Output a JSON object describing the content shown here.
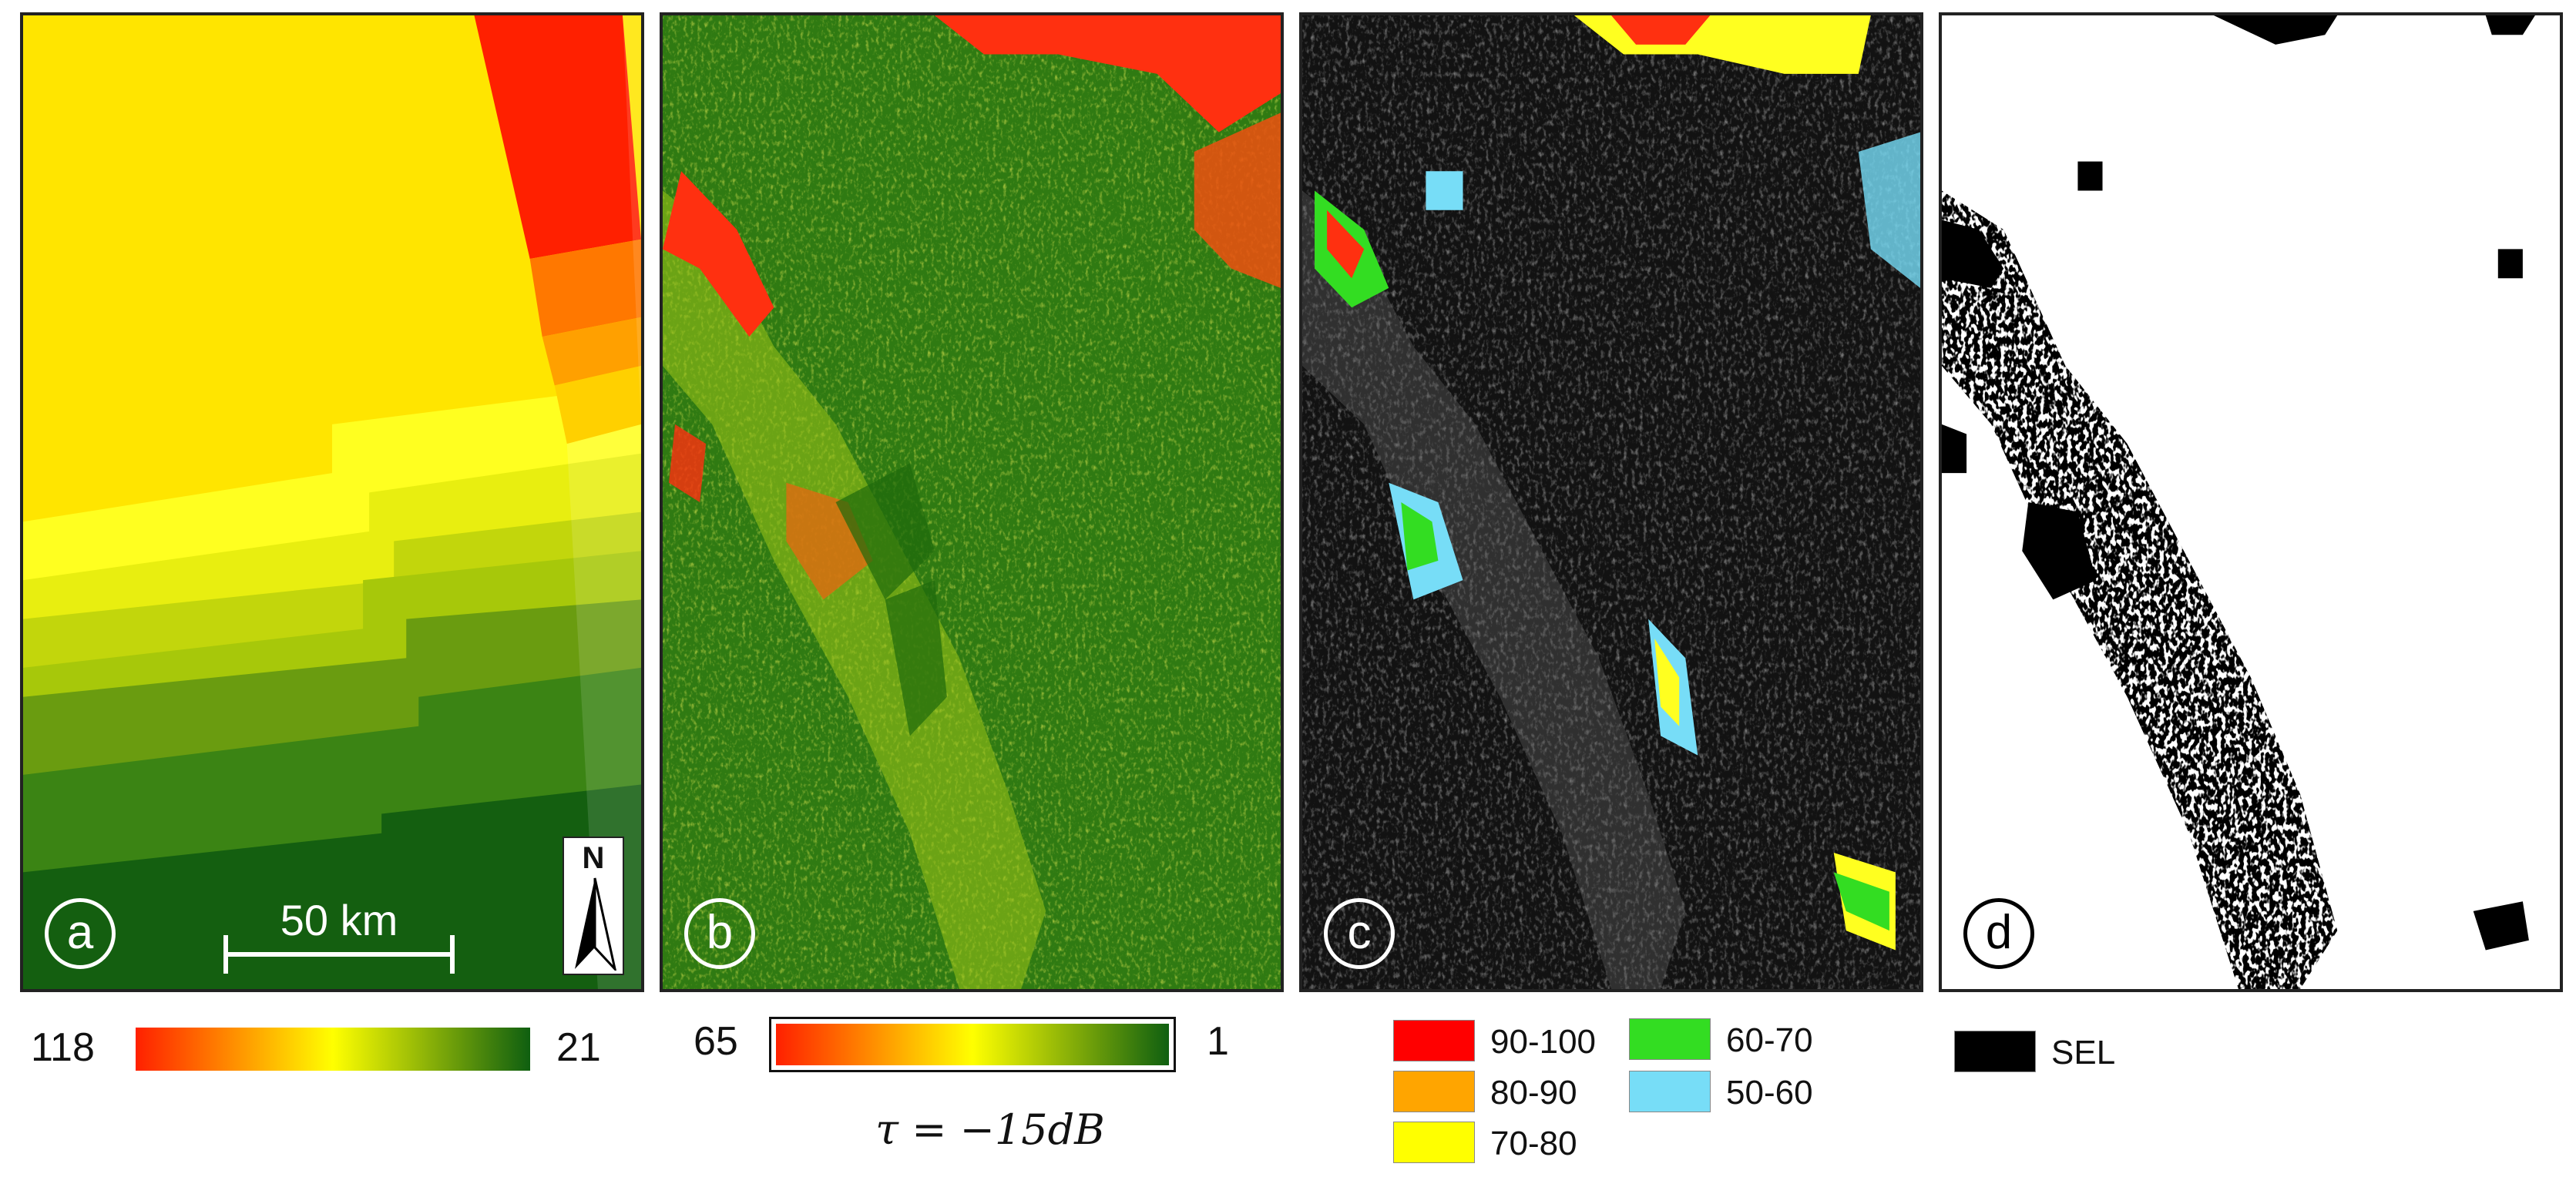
{
  "panels": {
    "a": {
      "label": "a"
    },
    "b": {
      "label": "b"
    },
    "c": {
      "label": "c"
    },
    "d": {
      "label": "d"
    }
  },
  "scalebar": {
    "text": "50 km"
  },
  "north_arrow": {
    "letter": "N"
  },
  "colorbar_a": {
    "max": "118",
    "min": "21",
    "colors": [
      "#ff2000",
      "#ffff00",
      "#0f5f10"
    ]
  },
  "colorbar_b": {
    "max": "65",
    "min": "1",
    "colors": [
      "#ff2000",
      "#ffff00",
      "#0f5f10"
    ]
  },
  "threshold_caption": "τ = −15dB",
  "legend_c": {
    "items": [
      {
        "label": "90-100",
        "color": "#ff0000"
      },
      {
        "label": "80-90",
        "color": "#ffa500"
      },
      {
        "label": "70-80",
        "color": "#ffff00"
      },
      {
        "label": "60-70",
        "color": "#33dd22"
      },
      {
        "label": "50-60",
        "color": "#77ddf7"
      }
    ]
  },
  "legend_d": {
    "label": "SEL",
    "color": "#000000"
  }
}
